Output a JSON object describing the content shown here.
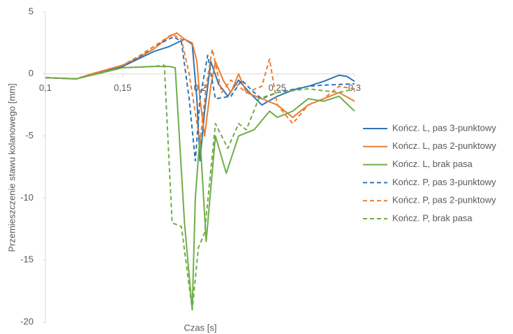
{
  "chart_data": {
    "type": "line",
    "xlabel": "Czas [s]",
    "ylabel": "Przemieszczenie stawu kolanowego [mm]",
    "xlim": [
      0.1,
      0.3
    ],
    "xticks": [
      {
        "value": 0.1,
        "label": "0,1"
      },
      {
        "value": 0.15,
        "label": "0,15"
      },
      {
        "value": 0.2,
        "label": "0,2"
      },
      {
        "value": 0.25,
        "label": "0,25"
      },
      {
        "value": 0.3,
        "label": "0,3"
      }
    ],
    "ylim": [
      -20,
      5
    ],
    "yticks": [
      -20,
      -15,
      -10,
      -5,
      0,
      5
    ],
    "grid": false,
    "legend": "right",
    "series": [
      {
        "name": "Kończ. L, pas 3-punktowy",
        "color": "#2e75b6",
        "dash": false,
        "x": [
          0.1,
          0.12,
          0.13,
          0.15,
          0.16,
          0.17,
          0.18,
          0.19,
          0.195,
          0.198,
          0.2,
          0.203,
          0.207,
          0.212,
          0.218,
          0.225,
          0.232,
          0.24,
          0.25,
          0.26,
          0.27,
          0.28,
          0.29,
          0.295,
          0.3
        ],
        "values": [
          -0.3,
          -0.4,
          0,
          0.6,
          1.2,
          1.8,
          2.2,
          2.8,
          2.4,
          -2,
          -7,
          -3,
          1,
          -0.8,
          -1.8,
          -0.5,
          -1.5,
          -2.5,
          -1.8,
          -1.3,
          -1,
          -0.6,
          -0.1,
          -0.2,
          -0.6
        ]
      },
      {
        "name": "Kończ. L, pas 2-punktowy",
        "color": "#ed7d31",
        "dash": false,
        "x": [
          0.1,
          0.12,
          0.13,
          0.15,
          0.16,
          0.17,
          0.18,
          0.185,
          0.19,
          0.195,
          0.198,
          0.2,
          0.203,
          0.207,
          0.21,
          0.215,
          0.22,
          0.225,
          0.23,
          0.24,
          0.25,
          0.26,
          0.27,
          0.28,
          0.29,
          0.3
        ],
        "values": [
          -0.3,
          -0.4,
          0,
          0.7,
          1.3,
          2.0,
          3.0,
          3.3,
          2.8,
          2.5,
          1,
          -2,
          -5,
          -1,
          1,
          -0.5,
          -1.5,
          0,
          -1.5,
          -2,
          -2.5,
          -3.5,
          -2.5,
          -2,
          -1.5,
          -2.2
        ]
      },
      {
        "name": "Kończ. L, brak pasa",
        "color": "#70ad47",
        "dash": false,
        "x": [
          0.1,
          0.12,
          0.13,
          0.15,
          0.17,
          0.18,
          0.184,
          0.19,
          0.195,
          0.197,
          0.2,
          0.204,
          0.21,
          0.217,
          0.225,
          0.235,
          0.245,
          0.25,
          0.26,
          0.27,
          0.28,
          0.29,
          0.3
        ],
        "values": [
          -0.3,
          -0.4,
          -0.1,
          0.5,
          0.6,
          0.6,
          0.5,
          -12,
          -19,
          -10,
          -5,
          -13.5,
          -5,
          -8,
          -5,
          -4.5,
          -3,
          -3.5,
          -3,
          -2,
          -2.2,
          -1.8,
          -3
        ]
      },
      {
        "name": "Kończ. P, pas 3-punktowy",
        "color": "#2e75b6",
        "dash": true,
        "x": [
          0.1,
          0.12,
          0.13,
          0.15,
          0.16,
          0.17,
          0.183,
          0.188,
          0.193,
          0.197,
          0.2,
          0.205,
          0.21,
          0.22,
          0.227,
          0.235,
          0.24,
          0.25,
          0.27,
          0.28,
          0.3
        ],
        "values": [
          -0.3,
          -0.4,
          0,
          0.7,
          1.3,
          2.2,
          3,
          2.6,
          -2,
          -7,
          -2,
          1.5,
          -2,
          -1.8,
          -0.5,
          -1.5,
          -2,
          -1.5,
          -1,
          -0.9,
          -0.8
        ]
      },
      {
        "name": "Kończ. P, pas 2-punktowy",
        "color": "#ed7d31",
        "dash": true,
        "x": [
          0.1,
          0.12,
          0.13,
          0.15,
          0.16,
          0.17,
          0.182,
          0.188,
          0.193,
          0.2,
          0.204,
          0.208,
          0.214,
          0.22,
          0.23,
          0.24,
          0.245,
          0.25,
          0.26,
          0.27,
          0.28,
          0.29,
          0.3
        ],
        "values": [
          -0.3,
          -0.4,
          0,
          0.7,
          1.4,
          2.2,
          3.2,
          2.8,
          0,
          -5.5,
          -1,
          2,
          -1.5,
          -0.5,
          -1.5,
          -1,
          1.2,
          -2.5,
          -4,
          -2.5,
          -2,
          -1,
          -1.2
        ]
      },
      {
        "name": "Kończ. P, brak pasa",
        "color": "#70ad47",
        "dash": true,
        "x": [
          0.1,
          0.12,
          0.13,
          0.15,
          0.17,
          0.177,
          0.178,
          0.182,
          0.188,
          0.195,
          0.199,
          0.203,
          0.21,
          0.218,
          0.225,
          0.23,
          0.238,
          0.25,
          0.27,
          0.29,
          0.3
        ],
        "values": [
          -0.3,
          -0.4,
          -0.1,
          0.5,
          0.6,
          0.7,
          -2,
          -12,
          -12.3,
          -19,
          -14,
          -12.8,
          -4,
          -6,
          -4,
          -4.5,
          -2,
          -1.5,
          -1.2,
          -1.5,
          -1.2
        ]
      }
    ]
  }
}
